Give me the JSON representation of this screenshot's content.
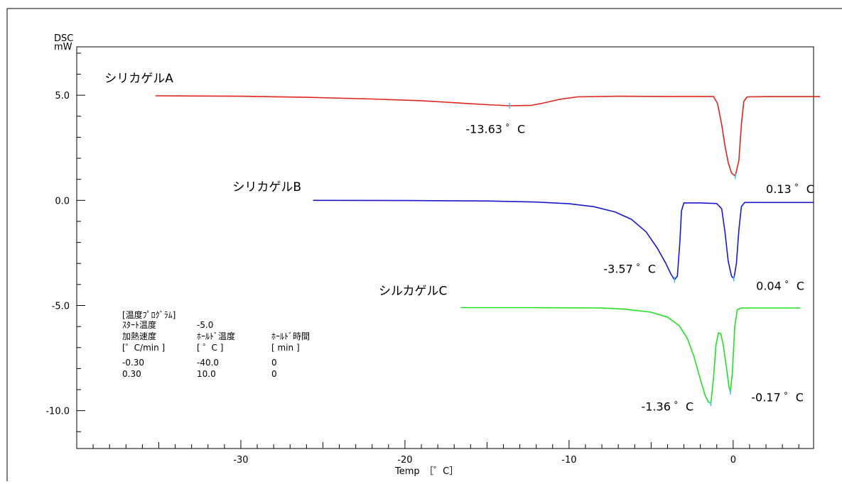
{
  "chart_data": {
    "type": "line",
    "ylabel": "DSC",
    "yunit": "mW",
    "xlabel": "Temp　［゜C］",
    "xlim": [
      -40,
      4.9
    ],
    "ylim": [
      -11.8,
      7.3
    ],
    "x_ticks": [
      -30,
      -20,
      -10,
      0
    ],
    "x_tick_labels": [
      "-30",
      "-20",
      "-10",
      "0"
    ],
    "y_ticks": [
      5,
      0,
      -5,
      -10
    ],
    "y_tick_labels": [
      "5.0",
      "0.0",
      "-5.0",
      "-10.0"
    ],
    "grid": false,
    "series": [
      {
        "name": "シリカゲルA",
        "color": "#e0231c",
        "points": [
          [
            -35.2,
            4.97
          ],
          [
            -30,
            4.95
          ],
          [
            -26,
            4.9
          ],
          [
            -22,
            4.82
          ],
          [
            -19,
            4.74
          ],
          [
            -16.5,
            4.62
          ],
          [
            -15,
            4.55
          ],
          [
            -13.63,
            4.5
          ],
          [
            -12.3,
            4.52
          ],
          [
            -11.6,
            4.62
          ],
          [
            -10.6,
            4.8
          ],
          [
            -9.5,
            4.92
          ],
          [
            -7,
            4.95
          ],
          [
            -4,
            4.94
          ],
          [
            -1.2,
            4.94
          ],
          [
            -0.95,
            4.6
          ],
          [
            -0.7,
            3.6
          ],
          [
            -0.5,
            2.6
          ],
          [
            -0.3,
            1.8
          ],
          [
            -0.1,
            1.3
          ],
          [
            0.13,
            1.15
          ],
          [
            0.35,
            1.9
          ],
          [
            0.5,
            3.6
          ],
          [
            0.65,
            4.7
          ],
          [
            0.85,
            4.92
          ],
          [
            2,
            4.93
          ],
          [
            5.3,
            4.93
          ]
        ]
      },
      {
        "name": "シリカゲルB",
        "color": "#1818cc",
        "points": [
          [
            -25.6,
            0
          ],
          [
            -20,
            -0.01
          ],
          [
            -15,
            -0.03
          ],
          [
            -12,
            -0.08
          ],
          [
            -10,
            -0.16
          ],
          [
            -8.5,
            -0.3
          ],
          [
            -7.2,
            -0.55
          ],
          [
            -6.2,
            -0.9
          ],
          [
            -5.3,
            -1.5
          ],
          [
            -4.6,
            -2.3
          ],
          [
            -4.1,
            -3.0
          ],
          [
            -3.8,
            -3.5
          ],
          [
            -3.57,
            -3.78
          ],
          [
            -3.4,
            -3.6
          ],
          [
            -3.25,
            -2.0
          ],
          [
            -3.15,
            -0.5
          ],
          [
            -3.0,
            -0.12
          ],
          [
            -2.0,
            -0.12
          ],
          [
            -1.0,
            -0.15
          ],
          [
            -0.7,
            -0.4
          ],
          [
            -0.5,
            -1.5
          ],
          [
            -0.3,
            -2.9
          ],
          [
            -0.1,
            -3.6
          ],
          [
            0.04,
            -3.72
          ],
          [
            0.2,
            -3.0
          ],
          [
            0.35,
            -1.4
          ],
          [
            0.5,
            -0.3
          ],
          [
            0.7,
            -0.1
          ],
          [
            2,
            -0.1
          ],
          [
            4.9,
            -0.1
          ]
        ]
      },
      {
        "name": "シルカゲルC",
        "color": "#22e022",
        "points": [
          [
            -16.6,
            -5.1
          ],
          [
            -12,
            -5.1
          ],
          [
            -8,
            -5.12
          ],
          [
            -6.5,
            -5.18
          ],
          [
            -5,
            -5.32
          ],
          [
            -4,
            -5.55
          ],
          [
            -3.3,
            -5.95
          ],
          [
            -2.8,
            -6.55
          ],
          [
            -2.4,
            -7.4
          ],
          [
            -2.0,
            -8.5
          ],
          [
            -1.7,
            -9.3
          ],
          [
            -1.5,
            -9.6
          ],
          [
            -1.36,
            -9.65
          ],
          [
            -1.2,
            -8.5
          ],
          [
            -1.05,
            -6.9
          ],
          [
            -0.9,
            -6.3
          ],
          [
            -0.75,
            -6.35
          ],
          [
            -0.6,
            -6.9
          ],
          [
            -0.4,
            -8.0
          ],
          [
            -0.25,
            -8.9
          ],
          [
            -0.17,
            -9.1
          ],
          [
            -0.05,
            -8.2
          ],
          [
            0.1,
            -6.0
          ],
          [
            0.25,
            -5.2
          ],
          [
            0.5,
            -5.12
          ],
          [
            2,
            -5.12
          ],
          [
            4.1,
            -5.12
          ]
        ]
      }
    ],
    "series_labels": [
      {
        "text": "シリカゲルA",
        "at": [
          -38.3,
          5.62
        ]
      },
      {
        "text": "シリカゲルB",
        "at": [
          -30.5,
          0.45
        ]
      },
      {
        "text": "シルカゲルC",
        "at": [
          -21.6,
          -4.5
        ]
      }
    ],
    "annotations": [
      {
        "text": "-13.63 ゜C",
        "at": [
          -16.3,
          3.2
        ],
        "marker": [
          -13.63,
          4.5
        ]
      },
      {
        "text": "0.13 ゜C",
        "at": [
          2.0,
          0.35
        ],
        "marker": [
          0.13,
          1.15
        ]
      },
      {
        "text": "-3.57 ゜C",
        "at": [
          -7.9,
          -3.45
        ],
        "marker": [
          -3.57,
          -3.78
        ]
      },
      {
        "text": "0.04 ゜C",
        "at": [
          1.4,
          -4.25
        ],
        "marker": [
          0.04,
          -3.72
        ]
      },
      {
        "text": "-1.36 ゜C",
        "at": [
          -5.6,
          -10.0
        ],
        "marker": [
          -1.36,
          -9.65
        ]
      },
      {
        "text": "-0.17 ゜C",
        "at": [
          1.1,
          -9.55
        ],
        "marker": [
          -0.17,
          -9.1
        ]
      }
    ]
  },
  "temperature_program": {
    "title": "[温度ﾌﾟﾛｸﾞﾗﾑ]",
    "start_temp_label": "ｽﾀｰﾄ温度",
    "start_temp_value": "-5.0",
    "headers": [
      "加熱速度",
      "ﾎｰﾙﾄﾞ温度",
      "ﾎｰﾙﾄﾞ時間"
    ],
    "units": [
      "[゜C/min ]",
      "[ ゜C ]",
      "[ min ]"
    ],
    "rows": [
      [
        "-0.30",
        "-40.0",
        "0"
      ],
      [
        "0.30",
        "10.0",
        "0"
      ]
    ]
  }
}
